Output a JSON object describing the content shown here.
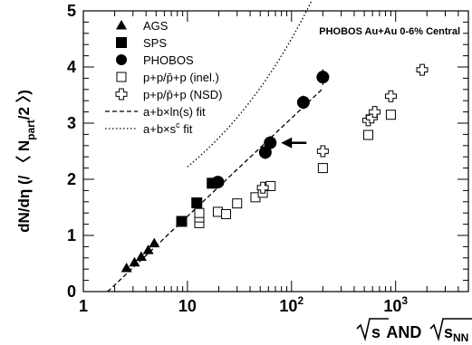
{
  "chart_data": {
    "type": "scatter",
    "x_scale": "log",
    "xlim": [
      1,
      5000
    ],
    "ylim": [
      0,
      5
    ],
    "grid": false,
    "x_tick_labels": [
      "1",
      "10",
      "10",
      "10"
    ],
    "x_tick_exponents": [
      "",
      "",
      "2",
      "3"
    ],
    "y_tick_labels": [
      "0",
      "1",
      "2",
      "3",
      "4",
      "5"
    ],
    "ylabel": {
      "main": "dN/dη (/ 〈 N",
      "sub": "part",
      "tail": "/2 〉)"
    },
    "xlabel": {
      "first": "s",
      "and": " AND ",
      "second": "s",
      "sub": "NN"
    },
    "annotation": "PHOBOS Au+Au 0-6% Central",
    "legend": [
      {
        "label": "AGS",
        "marker": "triangle-filled"
      },
      {
        "label": "SPS",
        "marker": "square-filled"
      },
      {
        "label": "PHOBOS",
        "marker": "circle-filled"
      },
      {
        "label": "p+p/p̄+p (inel.)",
        "marker": "square-open"
      },
      {
        "label": "p+p/p̄+p (NSD)",
        "marker": "cross-open"
      },
      {
        "label": "a+b×ln(s) fit",
        "marker": "dashed-line"
      },
      {
        "label": "a+b×s",
        "sup": "c",
        "tail": " fit",
        "marker": "dotted-line"
      }
    ],
    "series": [
      {
        "name": "AGS",
        "marker": "triangle-filled",
        "points": [
          [
            2.6,
            0.42
          ],
          [
            3.1,
            0.52
          ],
          [
            3.6,
            0.62
          ],
          [
            4.2,
            0.74
          ],
          [
            4.8,
            0.86
          ]
        ]
      },
      {
        "name": "SPS",
        "marker": "square-filled",
        "points": [
          [
            8.8,
            1.25
          ],
          [
            12.3,
            1.58
          ],
          [
            17.3,
            1.93
          ]
        ]
      },
      {
        "name": "PHOBOS",
        "marker": "circle-filled",
        "points": [
          [
            19.6,
            1.95,
            0.07
          ],
          [
            56,
            2.48,
            0.12
          ],
          [
            62.4,
            2.65,
            0.12
          ],
          [
            130,
            3.37,
            0.12
          ],
          [
            200,
            3.82,
            0.14
          ]
        ]
      },
      {
        "name": "p+p/p̄+p (inel.)",
        "marker": "square-open",
        "points": [
          [
            13,
            1.22
          ],
          [
            13,
            1.32
          ],
          [
            13,
            1.4
          ],
          [
            19.6,
            1.42
          ],
          [
            23.5,
            1.38
          ],
          [
            30,
            1.57
          ],
          [
            45,
            1.68
          ],
          [
            53,
            1.76
          ],
          [
            63,
            1.88
          ],
          [
            200,
            2.2
          ],
          [
            546,
            2.79
          ],
          [
            900,
            3.15
          ]
        ]
      },
      {
        "name": "p+p/p̄+p (NSD)",
        "marker": "cross-open",
        "points": [
          [
            53,
            1.85
          ],
          [
            200,
            2.5
          ],
          [
            546,
            3.05
          ],
          [
            590,
            3.1
          ],
          [
            630,
            3.2
          ],
          [
            900,
            3.48
          ],
          [
            1800,
            3.95
          ]
        ]
      },
      {
        "name": "a+b×ln(s) fit",
        "marker": "dashed-line",
        "a": -0.41,
        "b": 0.38,
        "x_range": [
          1.7,
          200
        ]
      },
      {
        "name": "a+b×s^c fit",
        "marker": "dotted-line",
        "a": 0.2,
        "b": 0.95,
        "c": 0.164,
        "x_range": [
          10,
          1000
        ]
      }
    ],
    "arrow": {
      "x": 62.4,
      "y": 2.65,
      "direction": "left"
    },
    "colors": {
      "axes": "#000000",
      "markers": "#000000",
      "background": "#ffffff"
    }
  }
}
